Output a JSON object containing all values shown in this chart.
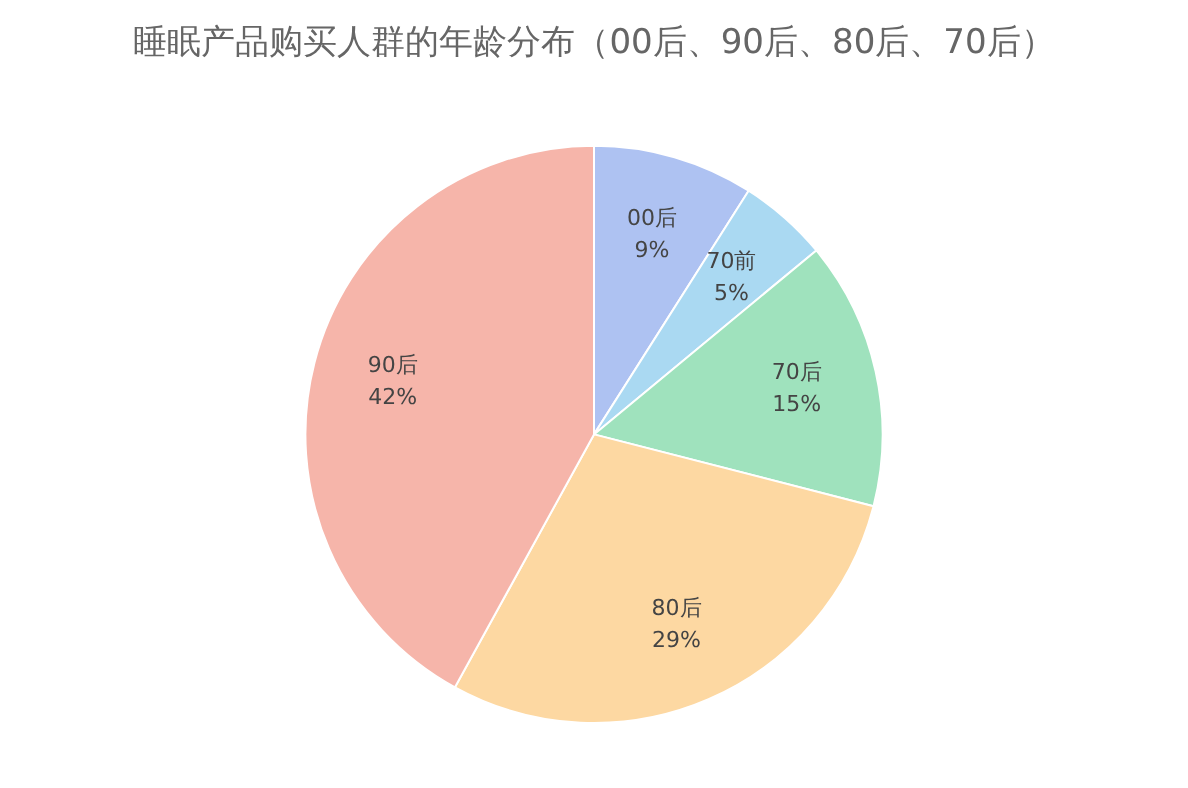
{
  "chart_data": {
    "type": "pie",
    "title": "睡眠产品购买人群的年龄分布（00后、90后、80后、70后）",
    "categories": [
      "00后",
      "70前",
      "70后",
      "80后",
      "90后"
    ],
    "values": [
      9,
      5,
      15,
      29,
      42
    ],
    "value_labels": [
      "9%",
      "5%",
      "15%",
      "29%",
      "42%"
    ],
    "colors": [
      "#aec2f2",
      "#aad9f2",
      "#9fe2bd",
      "#fdd8a2",
      "#f6b5aa"
    ],
    "legend": false
  }
}
